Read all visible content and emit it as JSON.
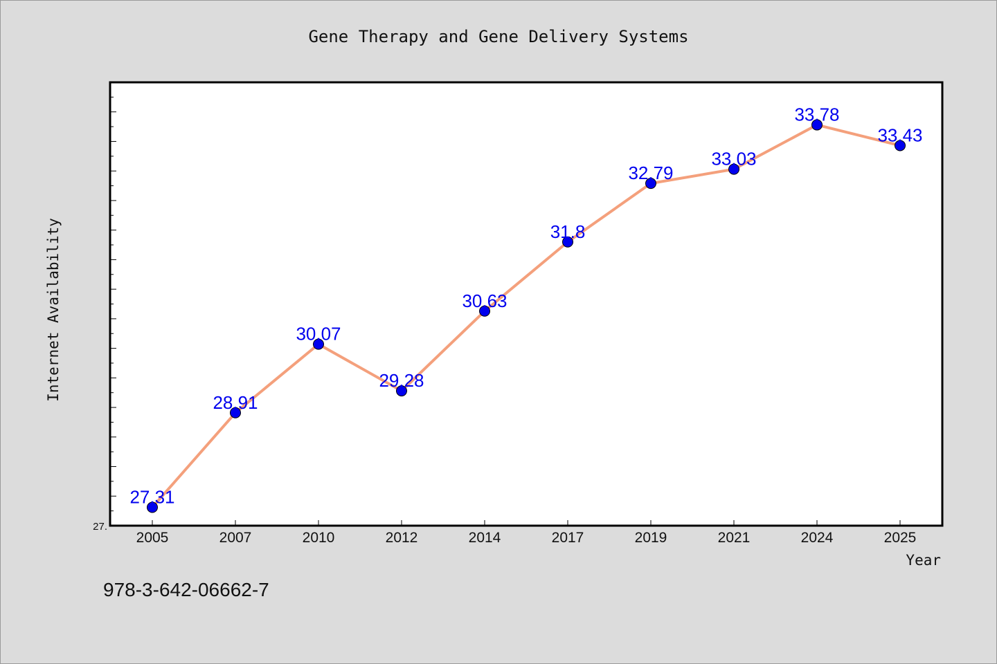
{
  "colors": {
    "background": "#dcdcdc",
    "plot_background": "#ffffff",
    "line": "#f4a07c",
    "marker": "#0000ee",
    "data_label": "#0000ee",
    "axis": "#000000"
  },
  "footer": {
    "isbn": "978-3-642-06662-7"
  },
  "chart_data": {
    "type": "line",
    "title": "Gene Therapy and Gene Delivery Systems",
    "xlabel": "Year",
    "ylabel": "Internet Availability",
    "categories": [
      "2005",
      "2007",
      "2010",
      "2012",
      "2014",
      "2017",
      "2019",
      "2021",
      "2024",
      "2025"
    ],
    "series": [
      {
        "values": [
          27.31,
          28.91,
          30.07,
          29.28,
          30.63,
          31.8,
          32.79,
          33.03,
          33.78,
          33.43
        ],
        "labels": [
          "27.31",
          "28.91",
          "30.07",
          "29.28",
          "30.63",
          "31.8",
          "32.79",
          "33.03",
          "33.78",
          "33.43"
        ]
      }
    ],
    "ylim": [
      27.0,
      34.5
    ],
    "yticks": [
      {
        "value": 27.0,
        "label": "27."
      }
    ],
    "grid": false,
    "legend": "none",
    "marker": "circle"
  }
}
